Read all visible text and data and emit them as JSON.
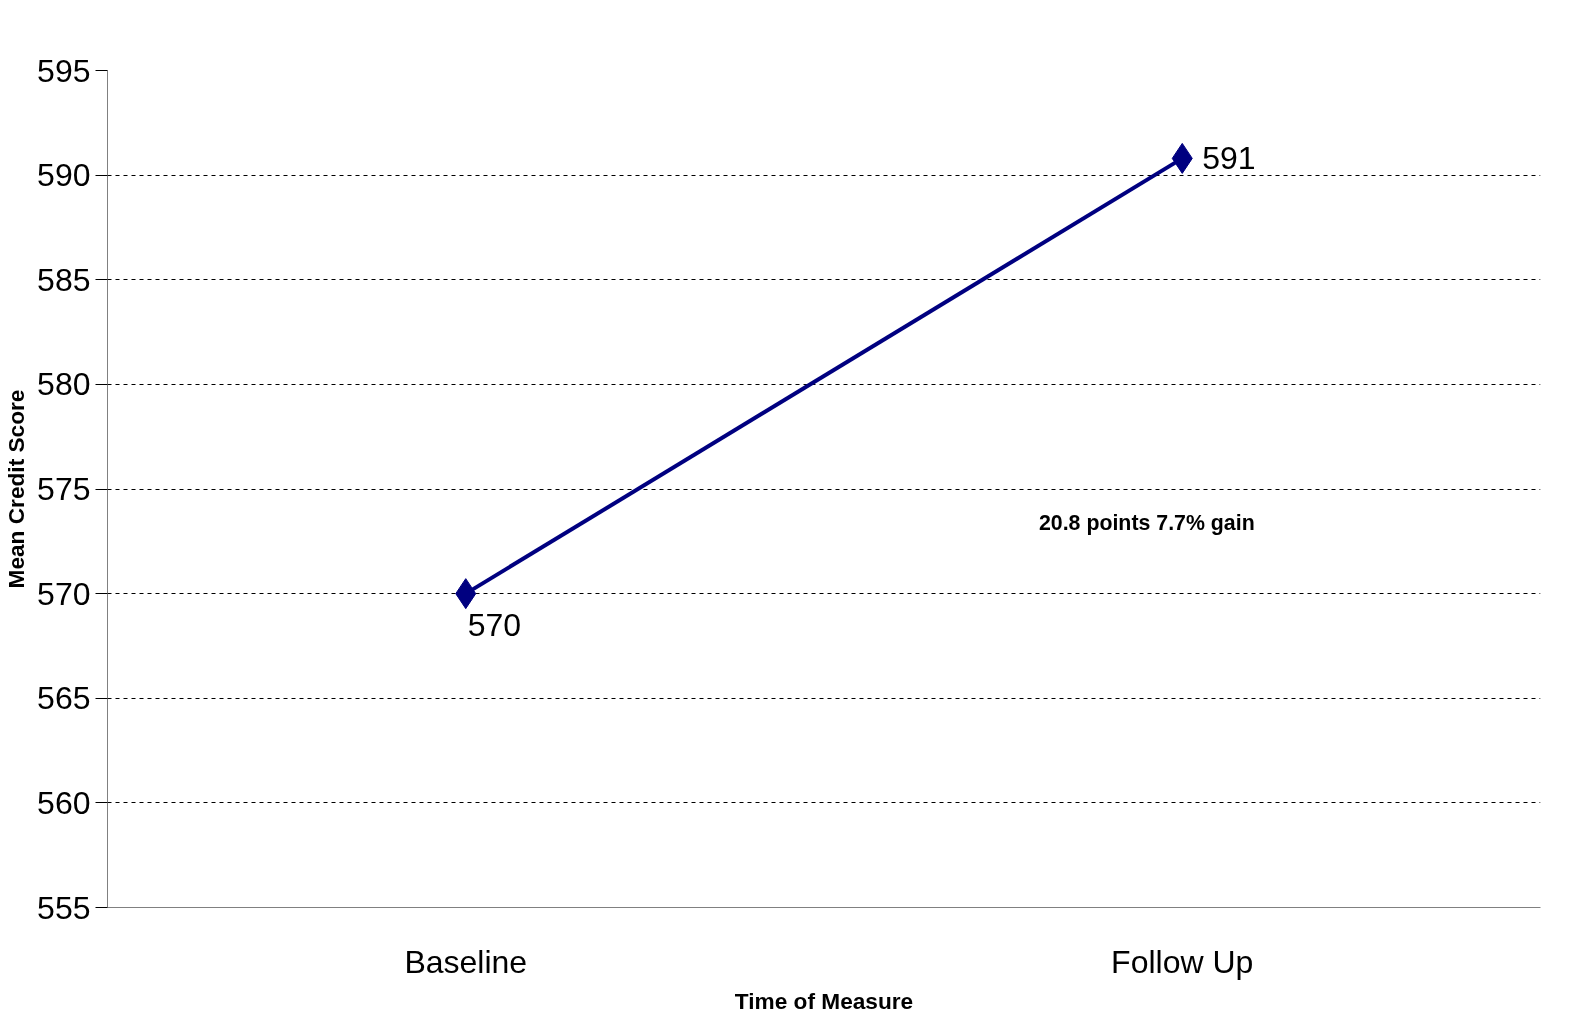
{
  "chart_data": {
    "type": "line",
    "xlabel": "Time of Measure",
    "ylabel": "Mean Credit Score",
    "categories": [
      "Baseline",
      "Follow Up"
    ],
    "series": [
      {
        "color": "#000080",
        "values": [
          570,
          590.8
        ],
        "value_labels": [
          "570",
          "591"
        ]
      }
    ],
    "ylim": [
      555,
      595
    ],
    "yticks": [
      555,
      560,
      565,
      570,
      575,
      580,
      585,
      590,
      595
    ],
    "grid": "y",
    "marker": "diamond",
    "line_style": "solid",
    "annotations": [
      "20.8 points  7.7% gain"
    ]
  }
}
